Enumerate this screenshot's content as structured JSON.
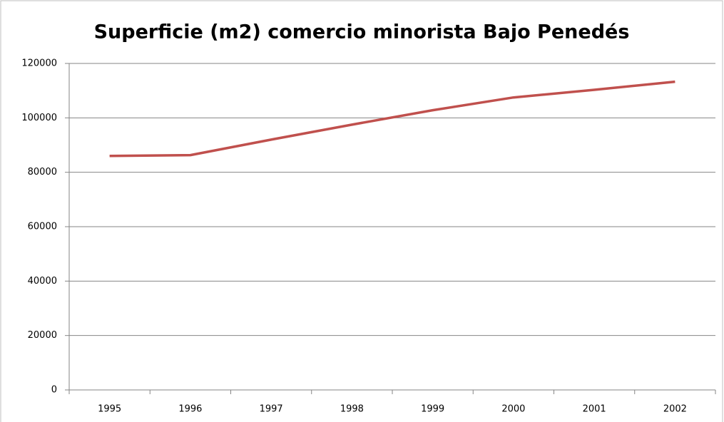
{
  "chart_data": {
    "type": "line",
    "title": "Superficie (m2) comercio minorista Bajo Penedés",
    "categories": [
      "1995",
      "1996",
      "1997",
      "1998",
      "1999",
      "2000",
      "2001",
      "2002"
    ],
    "series": [
      {
        "name": "Superficie (m2)",
        "color": "#c0504d",
        "values": [
          86000,
          86300,
          92000,
          97500,
          102800,
          107500,
          110300,
          113300
        ]
      }
    ],
    "ylim": [
      0,
      120000
    ],
    "yticks": [
      0,
      20000,
      40000,
      60000,
      80000,
      100000,
      120000
    ],
    "grid": true
  }
}
